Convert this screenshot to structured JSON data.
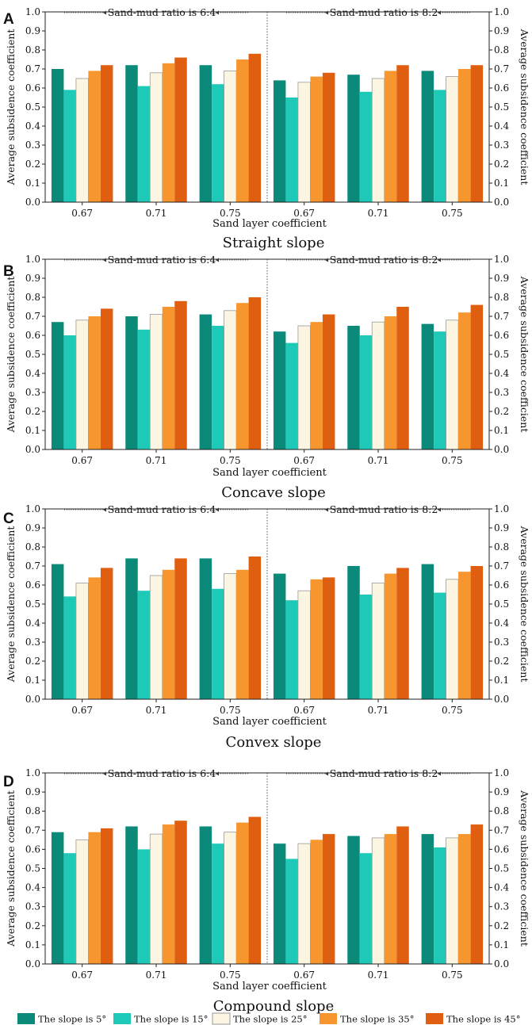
{
  "series_names": [
    "The slope is 5°",
    "The slope is 15°",
    "The slope is 25°",
    "The slope is 35°",
    "The slope is 45°"
  ],
  "series_colors": [
    "#0b8a7a",
    "#1fc9b8",
    "#fcf5e2",
    "#f7962e",
    "#e05e10"
  ],
  "chart_data": [
    {
      "type": "bar",
      "panel": "A",
      "title": "Straight slope",
      "xlabel": "Sand layer coefficient",
      "ylabel": "Average subsidence coefficient",
      "ylabel_right": "Average subsidence coefficient",
      "ylim": [
        0,
        1.0
      ],
      "yticks": [
        "0.0",
        "0.1",
        "0.2",
        "0.3",
        "0.4",
        "0.5",
        "0.6",
        "0.7",
        "0.8",
        "0.9",
        "1.0"
      ],
      "categories": [
        "0.67",
        "0.71",
        "0.75",
        "0.67",
        "0.71",
        "0.75"
      ],
      "group_labels": [
        "Sand-mud ratio is 6:4",
        "Sand-mud ratio is 8:2"
      ],
      "series": [
        {
          "name": "The slope is 5°",
          "values": [
            0.7,
            0.72,
            0.72,
            0.64,
            0.67,
            0.69
          ]
        },
        {
          "name": "The slope is 15°",
          "values": [
            0.59,
            0.61,
            0.62,
            0.55,
            0.58,
            0.59
          ]
        },
        {
          "name": "The slope is 25°",
          "values": [
            0.65,
            0.68,
            0.69,
            0.63,
            0.65,
            0.66
          ]
        },
        {
          "name": "The slope is 35°",
          "values": [
            0.69,
            0.73,
            0.75,
            0.66,
            0.69,
            0.7
          ]
        },
        {
          "name": "The slope is 45°",
          "values": [
            0.72,
            0.76,
            0.78,
            0.68,
            0.72,
            0.72
          ]
        }
      ]
    },
    {
      "type": "bar",
      "panel": "B",
      "title": "Concave slope",
      "xlabel": "Sand layer coefficient",
      "ylabel": "Average subsidence coefficient",
      "ylabel_right": "Average subsidence coefficient",
      "ylim": [
        0,
        1.0
      ],
      "yticks": [
        "0.0",
        "0.1",
        "0.2",
        "0.3",
        "0.4",
        "0.5",
        "0.6",
        "0.7",
        "0.8",
        "0.9",
        "1.0"
      ],
      "categories": [
        "0.67",
        "0.71",
        "0.75",
        "0.67",
        "0.71",
        "0.75"
      ],
      "group_labels": [
        "Sand-mud ratio is 6:4",
        "Sand-mud ratio is 8:2"
      ],
      "series": [
        {
          "name": "The slope is 5°",
          "values": [
            0.67,
            0.7,
            0.71,
            0.62,
            0.65,
            0.66
          ]
        },
        {
          "name": "The slope is 15°",
          "values": [
            0.6,
            0.63,
            0.65,
            0.56,
            0.6,
            0.62
          ]
        },
        {
          "name": "The slope is 25°",
          "values": [
            0.68,
            0.71,
            0.73,
            0.65,
            0.67,
            0.68
          ]
        },
        {
          "name": "The slope is 35°",
          "values": [
            0.7,
            0.75,
            0.77,
            0.67,
            0.7,
            0.72
          ]
        },
        {
          "name": "The slope is 45°",
          "values": [
            0.74,
            0.78,
            0.8,
            0.71,
            0.75,
            0.76
          ]
        }
      ]
    },
    {
      "type": "bar",
      "panel": "C",
      "title": "Convex slope",
      "xlabel": "Sand layer coefficient",
      "ylabel": "Average subsidence coefficient",
      "ylabel_right": "Average subsidence coefficient",
      "ylim": [
        0,
        1.0
      ],
      "yticks": [
        "0.0",
        "0.1",
        "0.2",
        "0.3",
        "0.4",
        "0.5",
        "0.6",
        "0.7",
        "0.8",
        "0.9",
        "1.0"
      ],
      "categories": [
        "0.67",
        "0.71",
        "0.75",
        "0.67",
        "0.71",
        "0.75"
      ],
      "group_labels": [
        "Sand-mud ratio is 6:4",
        "Sand-mud ratio is 8:2"
      ],
      "series": [
        {
          "name": "The slope is 5°",
          "values": [
            0.71,
            0.74,
            0.74,
            0.66,
            0.7,
            0.71
          ]
        },
        {
          "name": "The slope is 15°",
          "values": [
            0.54,
            0.57,
            0.58,
            0.52,
            0.55,
            0.56
          ]
        },
        {
          "name": "The slope is 25°",
          "values": [
            0.61,
            0.65,
            0.66,
            0.57,
            0.61,
            0.63
          ]
        },
        {
          "name": "The slope is 35°",
          "values": [
            0.64,
            0.68,
            0.68,
            0.63,
            0.66,
            0.67
          ]
        },
        {
          "name": "The slope is 45°",
          "values": [
            0.69,
            0.74,
            0.75,
            0.64,
            0.69,
            0.7
          ]
        }
      ]
    },
    {
      "type": "bar",
      "panel": "D",
      "title": "Compound slope",
      "xlabel": "Sand layer coefficient",
      "ylabel": "Average subsidence coefficient",
      "ylabel_right": "Average subsidence coefficient",
      "ylim": [
        0,
        1.0
      ],
      "yticks": [
        "0.0",
        "0.1",
        "0.2",
        "0.3",
        "0.4",
        "0.5",
        "0.6",
        "0.7",
        "0.8",
        "0.9",
        "1.0"
      ],
      "categories": [
        "0.67",
        "0.71",
        "0.75",
        "0.67",
        "0.71",
        "0.75"
      ],
      "group_labels": [
        "Sand-mud ratio is 6:4",
        "Sand-mud ratio is 8:2"
      ],
      "series": [
        {
          "name": "The slope is 5°",
          "values": [
            0.69,
            0.72,
            0.72,
            0.63,
            0.67,
            0.68
          ]
        },
        {
          "name": "The slope is 15°",
          "values": [
            0.58,
            0.6,
            0.63,
            0.55,
            0.58,
            0.61
          ]
        },
        {
          "name": "The slope is 25°",
          "values": [
            0.65,
            0.68,
            0.69,
            0.63,
            0.66,
            0.66
          ]
        },
        {
          "name": "The slope is 35°",
          "values": [
            0.69,
            0.73,
            0.74,
            0.65,
            0.68,
            0.68
          ]
        },
        {
          "name": "The slope is 45°",
          "values": [
            0.71,
            0.75,
            0.77,
            0.68,
            0.72,
            0.73
          ]
        }
      ]
    }
  ]
}
